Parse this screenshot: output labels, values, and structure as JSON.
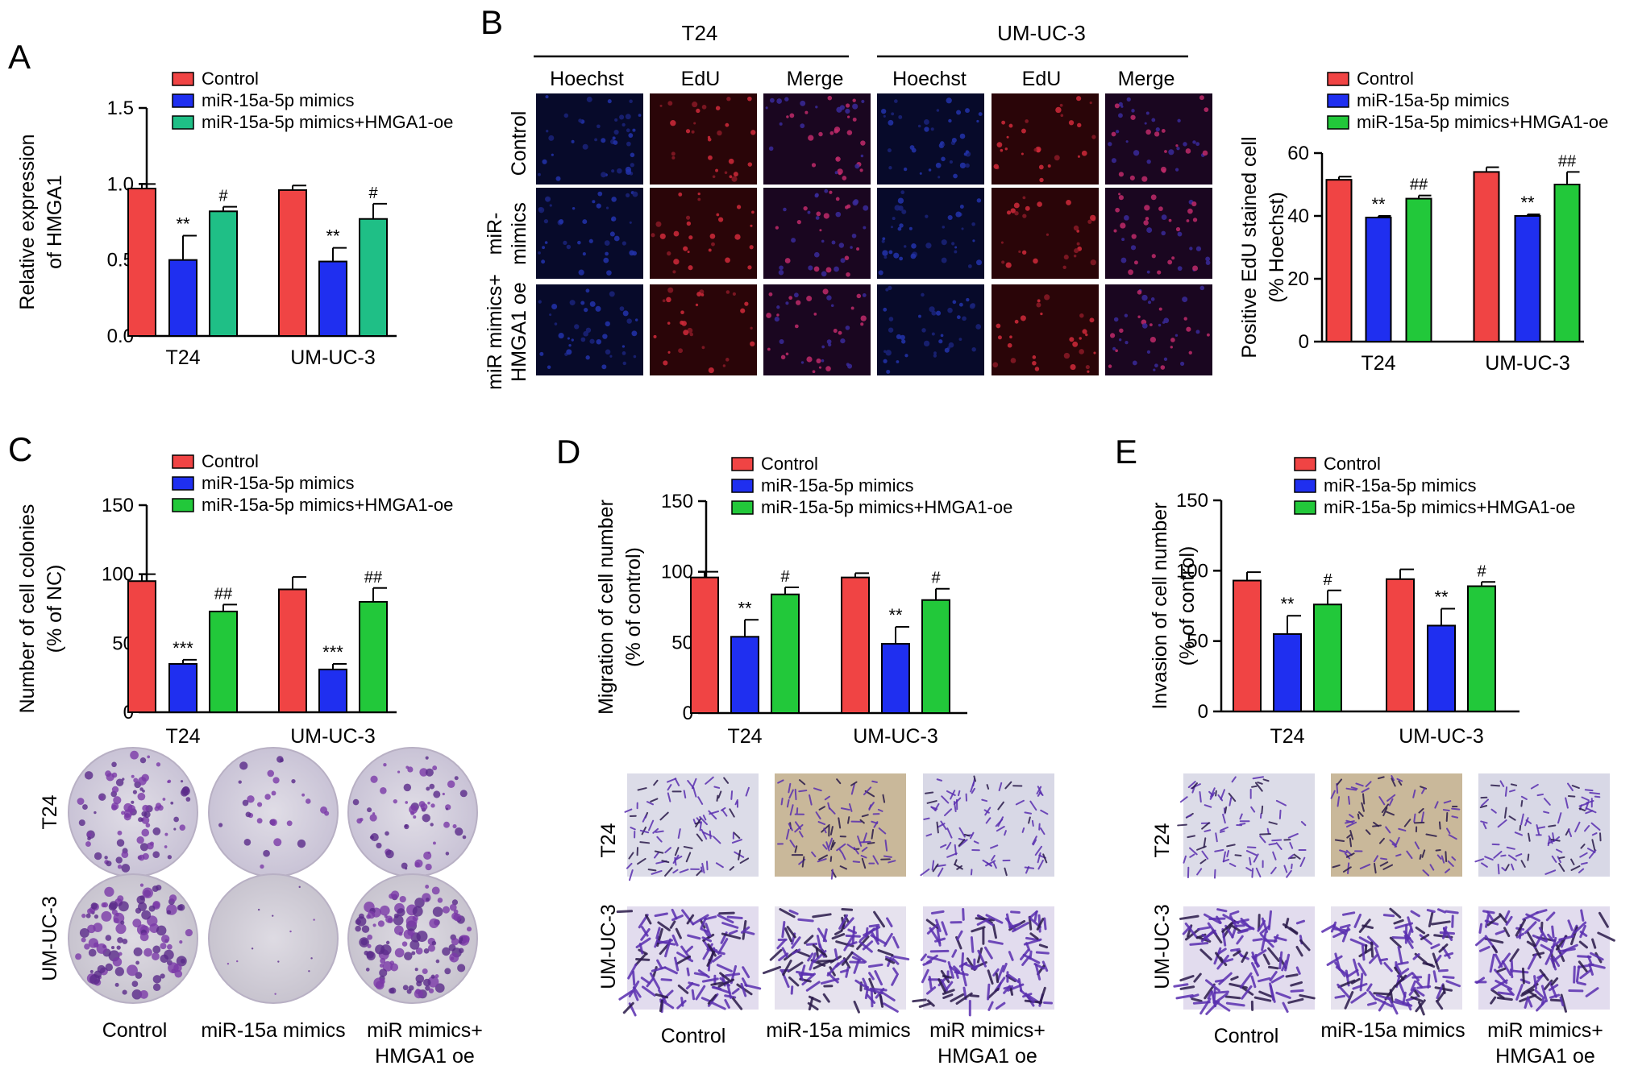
{
  "colors": {
    "control": "#f04444",
    "mimics": "#1f2ff0",
    "oe_a": "#1fbf86",
    "oe": "#22c83a",
    "axis": "#000000"
  },
  "panels": {
    "A": {
      "letter": "A"
    },
    "B": {
      "letter": "B",
      "col_groups": [
        "T24",
        "UM-UC-3"
      ],
      "col_labels": [
        "Hoechst",
        "EdU",
        "Merge",
        "Hoechst",
        "EdU",
        "Merge"
      ],
      "row_labels": [
        [
          "Control"
        ],
        [
          "miR-",
          "mimics"
        ],
        [
          "miR mimics+",
          "HMGA1 oe"
        ]
      ]
    },
    "C": {
      "letter": "C",
      "row_labels": [
        "T24",
        "UM-UC-3"
      ],
      "col_labels": [
        [
          "Control"
        ],
        [
          "miR-15a mimics"
        ],
        [
          "miR mimics+",
          "HMGA1 oe"
        ]
      ]
    },
    "D": {
      "letter": "D",
      "row_labels": [
        "T24",
        "UM-UC-3"
      ],
      "col_labels": [
        [
          "Control"
        ],
        [
          "miR-15a mimics"
        ],
        [
          "miR mimics+",
          "HMGA1 oe"
        ]
      ]
    },
    "E": {
      "letter": "E",
      "row_labels": [
        "T24",
        "UM-UC-3"
      ],
      "col_labels": [
        [
          "Control"
        ],
        [
          "miR-15a mimics"
        ],
        [
          "miR mimics+",
          "HMGA1 oe"
        ]
      ]
    }
  },
  "chart_data": [
    {
      "panel": "A",
      "type": "bar",
      "categories": [
        "T24",
        "UM-UC-3"
      ],
      "ylabel": [
        "Relative expression",
        "of HMGA1"
      ],
      "ylim": [
        0,
        1.5
      ],
      "yticks": [
        "0.0",
        "0.5",
        "1.0",
        "1.5"
      ],
      "series": [
        {
          "name": "Control",
          "color_key": "control",
          "values": [
            0.97,
            0.96
          ],
          "errors": [
            0.03,
            0.03
          ],
          "marks": [
            "",
            ""
          ]
        },
        {
          "name": "miR-15a-5p mimics",
          "color_key": "mimics",
          "values": [
            0.5,
            0.49
          ],
          "errors": [
            0.16,
            0.09
          ],
          "marks": [
            "**",
            "**"
          ]
        },
        {
          "name": "miR-15a-5p mimics+HMGA1-oe",
          "color_key": "oe_a",
          "values": [
            0.82,
            0.77
          ],
          "errors": [
            0.03,
            0.1
          ],
          "marks": [
            "#",
            "#"
          ]
        }
      ]
    },
    {
      "panel": "B",
      "type": "bar",
      "categories": [
        "T24",
        "UM-UC-3"
      ],
      "ylabel": [
        "Positive EdU stained cell",
        "(% Hoechst)"
      ],
      "ylim": [
        0,
        60
      ],
      "yticks": [
        "0",
        "20",
        "40",
        "60"
      ],
      "series": [
        {
          "name": "Control",
          "color_key": "control",
          "values": [
            51.5,
            54
          ],
          "errors": [
            1,
            1.5
          ],
          "marks": [
            "",
            ""
          ]
        },
        {
          "name": "miR-15a-5p mimics",
          "color_key": "mimics",
          "values": [
            39.5,
            40
          ],
          "errors": [
            0.5,
            0.5
          ],
          "marks": [
            "**",
            "**"
          ]
        },
        {
          "name": "miR-15a-5p mimics+HMGA1-oe",
          "color_key": "oe",
          "values": [
            45.5,
            50
          ],
          "errors": [
            1,
            4
          ],
          "marks": [
            "##",
            "##"
          ]
        }
      ]
    },
    {
      "panel": "C",
      "type": "bar",
      "categories": [
        "T24",
        "UM-UC-3"
      ],
      "ylabel": [
        "Number of cell colonies",
        "(% of NC)"
      ],
      "ylim": [
        0,
        150
      ],
      "yticks": [
        "0",
        "50",
        "100",
        "150"
      ],
      "series": [
        {
          "name": "Control",
          "color_key": "control",
          "values": [
            95,
            89
          ],
          "errors": [
            5,
            9
          ],
          "marks": [
            "",
            ""
          ]
        },
        {
          "name": "miR-15a-5p mimics",
          "color_key": "mimics",
          "values": [
            35,
            31
          ],
          "errors": [
            3,
            4
          ],
          "marks": [
            "***",
            "***"
          ]
        },
        {
          "name": "miR-15a-5p mimics+HMGA1-oe",
          "color_key": "oe",
          "values": [
            73,
            80
          ],
          "errors": [
            5,
            10
          ],
          "marks": [
            "##",
            "##"
          ]
        }
      ]
    },
    {
      "panel": "D",
      "type": "bar",
      "categories": [
        "T24",
        "UM-UC-3"
      ],
      "ylabel": [
        "Migration of cell number",
        "(% of control)"
      ],
      "ylim": [
        0,
        150
      ],
      "yticks": [
        "0",
        "50",
        "100",
        "150"
      ],
      "series": [
        {
          "name": "Control",
          "color_key": "control",
          "values": [
            96,
            96
          ],
          "errors": [
            4,
            3
          ],
          "marks": [
            "",
            ""
          ]
        },
        {
          "name": "miR-15a-5p mimics",
          "color_key": "mimics",
          "values": [
            54,
            49
          ],
          "errors": [
            12,
            12
          ],
          "marks": [
            "**",
            "**"
          ]
        },
        {
          "name": "miR-15a-5p mimics+HMGA1-oe",
          "color_key": "oe",
          "values": [
            84,
            80
          ],
          "errors": [
            5,
            8
          ],
          "marks": [
            "#",
            "#"
          ]
        }
      ]
    },
    {
      "panel": "E",
      "type": "bar",
      "categories": [
        "T24",
        "UM-UC-3"
      ],
      "ylabel": [
        "Invasion of cell number",
        "(% of control)"
      ],
      "ylim": [
        0,
        150
      ],
      "yticks": [
        "0",
        "50",
        "100",
        "150"
      ],
      "series": [
        {
          "name": "Control",
          "color_key": "control",
          "values": [
            93,
            94
          ],
          "errors": [
            6,
            7
          ],
          "marks": [
            "",
            ""
          ]
        },
        {
          "name": "miR-15a-5p mimics",
          "color_key": "mimics",
          "values": [
            55,
            61
          ],
          "errors": [
            13,
            12
          ],
          "marks": [
            "**",
            "**"
          ]
        },
        {
          "name": "miR-15a-5p mimics+HMGA1-oe",
          "color_key": "oe",
          "values": [
            76,
            89
          ],
          "errors": [
            10,
            3
          ],
          "marks": [
            "#",
            "#"
          ]
        }
      ]
    }
  ]
}
